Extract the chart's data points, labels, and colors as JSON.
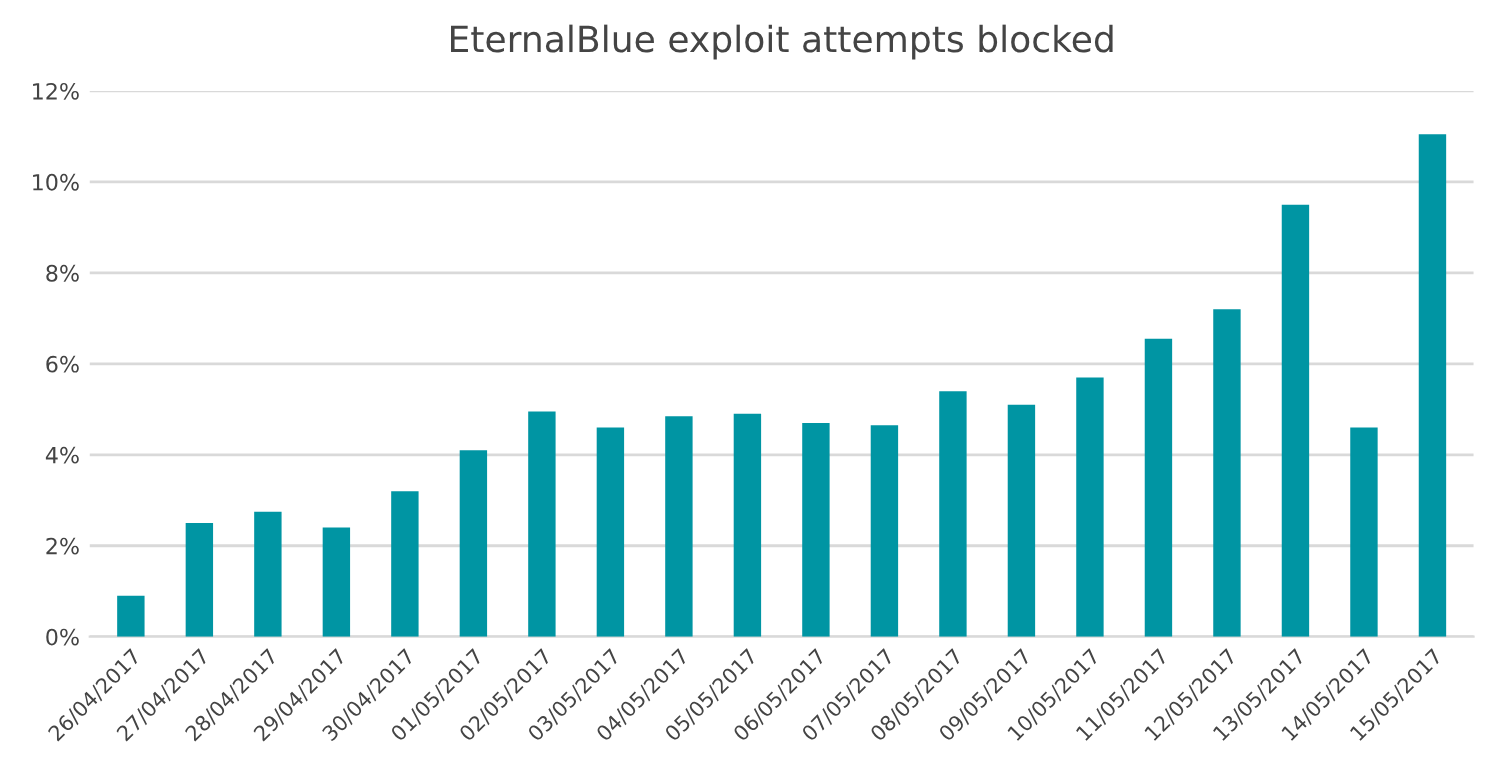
{
  "chart_data": {
    "type": "bar",
    "title": "EternalBlue exploit attempts blocked",
    "categories": [
      "26/04/2017",
      "27/04/2017",
      "28/04/2017",
      "29/04/2017",
      "30/04/2017",
      "01/05/2017",
      "02/05/2017",
      "03/05/2017",
      "04/05/2017",
      "05/05/2017",
      "06/05/2017",
      "07/05/2017",
      "08/05/2017",
      "09/05/2017",
      "10/05/2017",
      "11/05/2017",
      "12/05/2017",
      "13/05/2017",
      "14/05/2017",
      "15/05/2017"
    ],
    "values": [
      0.9,
      2.5,
      2.75,
      2.4,
      3.2,
      4.1,
      4.95,
      4.6,
      4.85,
      4.9,
      4.7,
      4.65,
      5.4,
      5.1,
      5.7,
      6.55,
      7.2,
      9.5,
      4.6,
      11.05
    ],
    "color": "#0095a3",
    "ylim": [
      0,
      12
    ],
    "yticks": [
      {
        "value": 0,
        "label": "0%"
      },
      {
        "value": 2,
        "label": "2%"
      },
      {
        "value": 4,
        "label": "4%"
      },
      {
        "value": 6,
        "label": "6%"
      },
      {
        "value": 8,
        "label": "8%"
      },
      {
        "value": 10,
        "label": "10%"
      },
      {
        "value": 12,
        "label": "12%"
      }
    ],
    "grid": "y"
  }
}
